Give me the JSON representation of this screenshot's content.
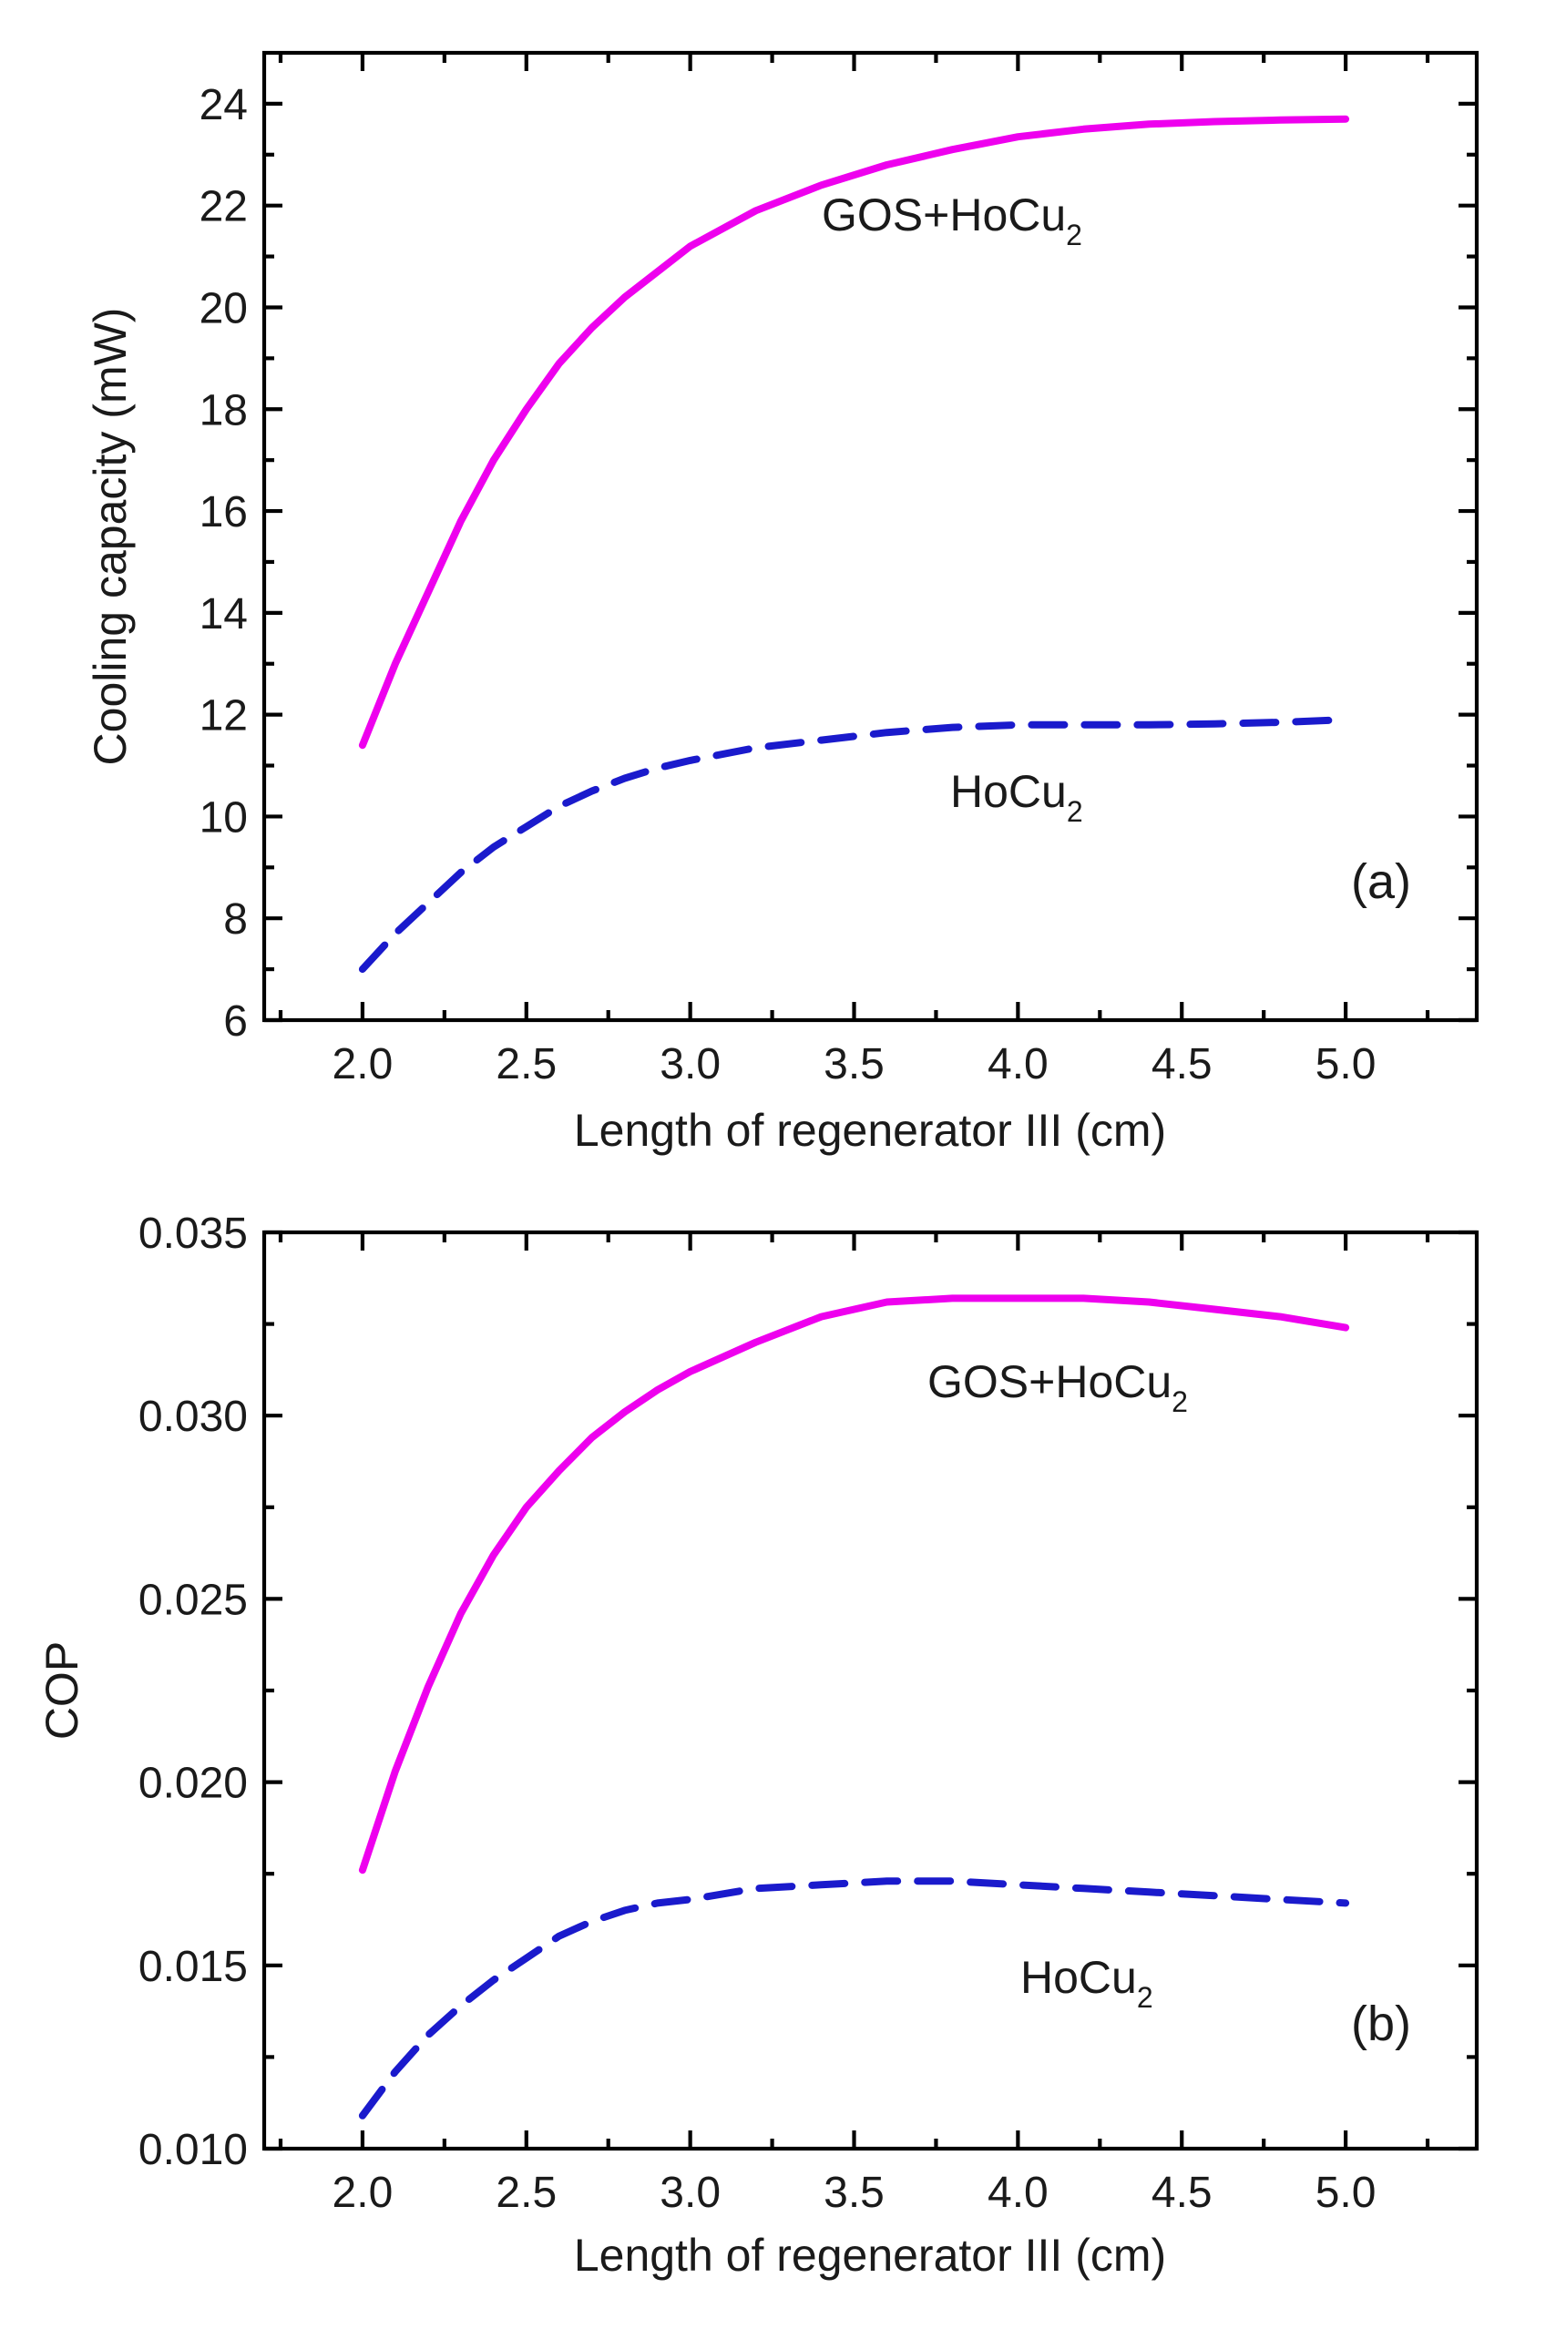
{
  "chart_data": [
    {
      "type": "line",
      "panel": "(a)",
      "xlabel": "Length of regenerator III (cm)",
      "ylabel": "Cooling capacity (mW)",
      "xlim": [
        1.7,
        5.4
      ],
      "ylim": [
        6,
        25
      ],
      "xticks": [
        "2.0",
        "2.5",
        "3.0",
        "3.5",
        "4.0",
        "4.5",
        "5.0"
      ],
      "yticks": [
        "6",
        "8",
        "10",
        "12",
        "14",
        "16",
        "18",
        "20",
        "22",
        "24"
      ],
      "series": [
        {
          "name": "GOS+HoCu2",
          "label_main": "GOS+HoCu",
          "label_sub": "2",
          "color": "#ee00ee",
          "style": "solid",
          "x": [
            2.0,
            2.1,
            2.2,
            2.3,
            2.4,
            2.5,
            2.6,
            2.7,
            2.8,
            2.9,
            3.0,
            3.2,
            3.4,
            3.6,
            3.8,
            4.0,
            4.2,
            4.4,
            4.6,
            4.8,
            5.0
          ],
          "y": [
            11.4,
            13.0,
            14.4,
            15.8,
            17.0,
            18.0,
            18.9,
            19.6,
            20.2,
            20.7,
            21.2,
            21.9,
            22.4,
            22.8,
            23.1,
            23.35,
            23.5,
            23.6,
            23.65,
            23.68,
            23.7
          ]
        },
        {
          "name": "HoCu2",
          "label_main": "HoCu",
          "label_sub": "2",
          "color": "#1a1acc",
          "style": "dashed",
          "x": [
            2.0,
            2.1,
            2.2,
            2.3,
            2.4,
            2.5,
            2.6,
            2.7,
            2.8,
            2.9,
            3.0,
            3.2,
            3.4,
            3.6,
            3.8,
            4.0,
            4.2,
            4.4,
            4.6,
            4.8,
            5.0
          ],
          "y": [
            7.0,
            7.7,
            8.3,
            8.9,
            9.4,
            9.8,
            10.2,
            10.5,
            10.75,
            10.95,
            11.1,
            11.35,
            11.5,
            11.65,
            11.75,
            11.8,
            11.8,
            11.8,
            11.82,
            11.85,
            11.9
          ]
        }
      ]
    },
    {
      "type": "line",
      "panel": "(b)",
      "xlabel": "Length of regenerator III (cm)",
      "ylabel": "COP",
      "xlim": [
        1.7,
        5.4
      ],
      "ylim": [
        0.01,
        0.035
      ],
      "xticks": [
        "2.0",
        "2.5",
        "3.0",
        "3.5",
        "4.0",
        "4.5",
        "5.0"
      ],
      "yticks": [
        "0.010",
        "0.015",
        "0.020",
        "0.025",
        "0.030",
        "0.035"
      ],
      "series": [
        {
          "name": "GOS+HoCu2",
          "label_main": "GOS+HoCu",
          "label_sub": "2",
          "color": "#ee00ee",
          "style": "solid",
          "x": [
            2.0,
            2.1,
            2.2,
            2.3,
            2.4,
            2.5,
            2.6,
            2.7,
            2.8,
            2.9,
            3.0,
            3.2,
            3.4,
            3.6,
            3.8,
            4.0,
            4.2,
            4.4,
            4.6,
            4.8,
            5.0
          ],
          "y": [
            0.0176,
            0.0203,
            0.0226,
            0.0246,
            0.0262,
            0.0275,
            0.0285,
            0.0294,
            0.0301,
            0.0307,
            0.0312,
            0.032,
            0.0327,
            0.0331,
            0.0332,
            0.0332,
            0.0332,
            0.0331,
            0.0329,
            0.0327,
            0.0324
          ]
        },
        {
          "name": "HoCu2",
          "label_main": "HoCu",
          "label_sub": "2",
          "color": "#1a1acc",
          "style": "dashed",
          "x": [
            2.0,
            2.1,
            2.2,
            2.3,
            2.4,
            2.5,
            2.6,
            2.7,
            2.8,
            2.9,
            3.0,
            3.2,
            3.4,
            3.6,
            3.8,
            4.0,
            4.2,
            4.4,
            4.6,
            4.8,
            5.0
          ],
          "y": [
            0.0109,
            0.0121,
            0.0131,
            0.0139,
            0.0146,
            0.0152,
            0.0158,
            0.0162,
            0.0165,
            0.0167,
            0.0168,
            0.0171,
            0.0172,
            0.0173,
            0.0173,
            0.0172,
            0.0171,
            0.017,
            0.0169,
            0.0168,
            0.0167
          ]
        }
      ]
    }
  ]
}
